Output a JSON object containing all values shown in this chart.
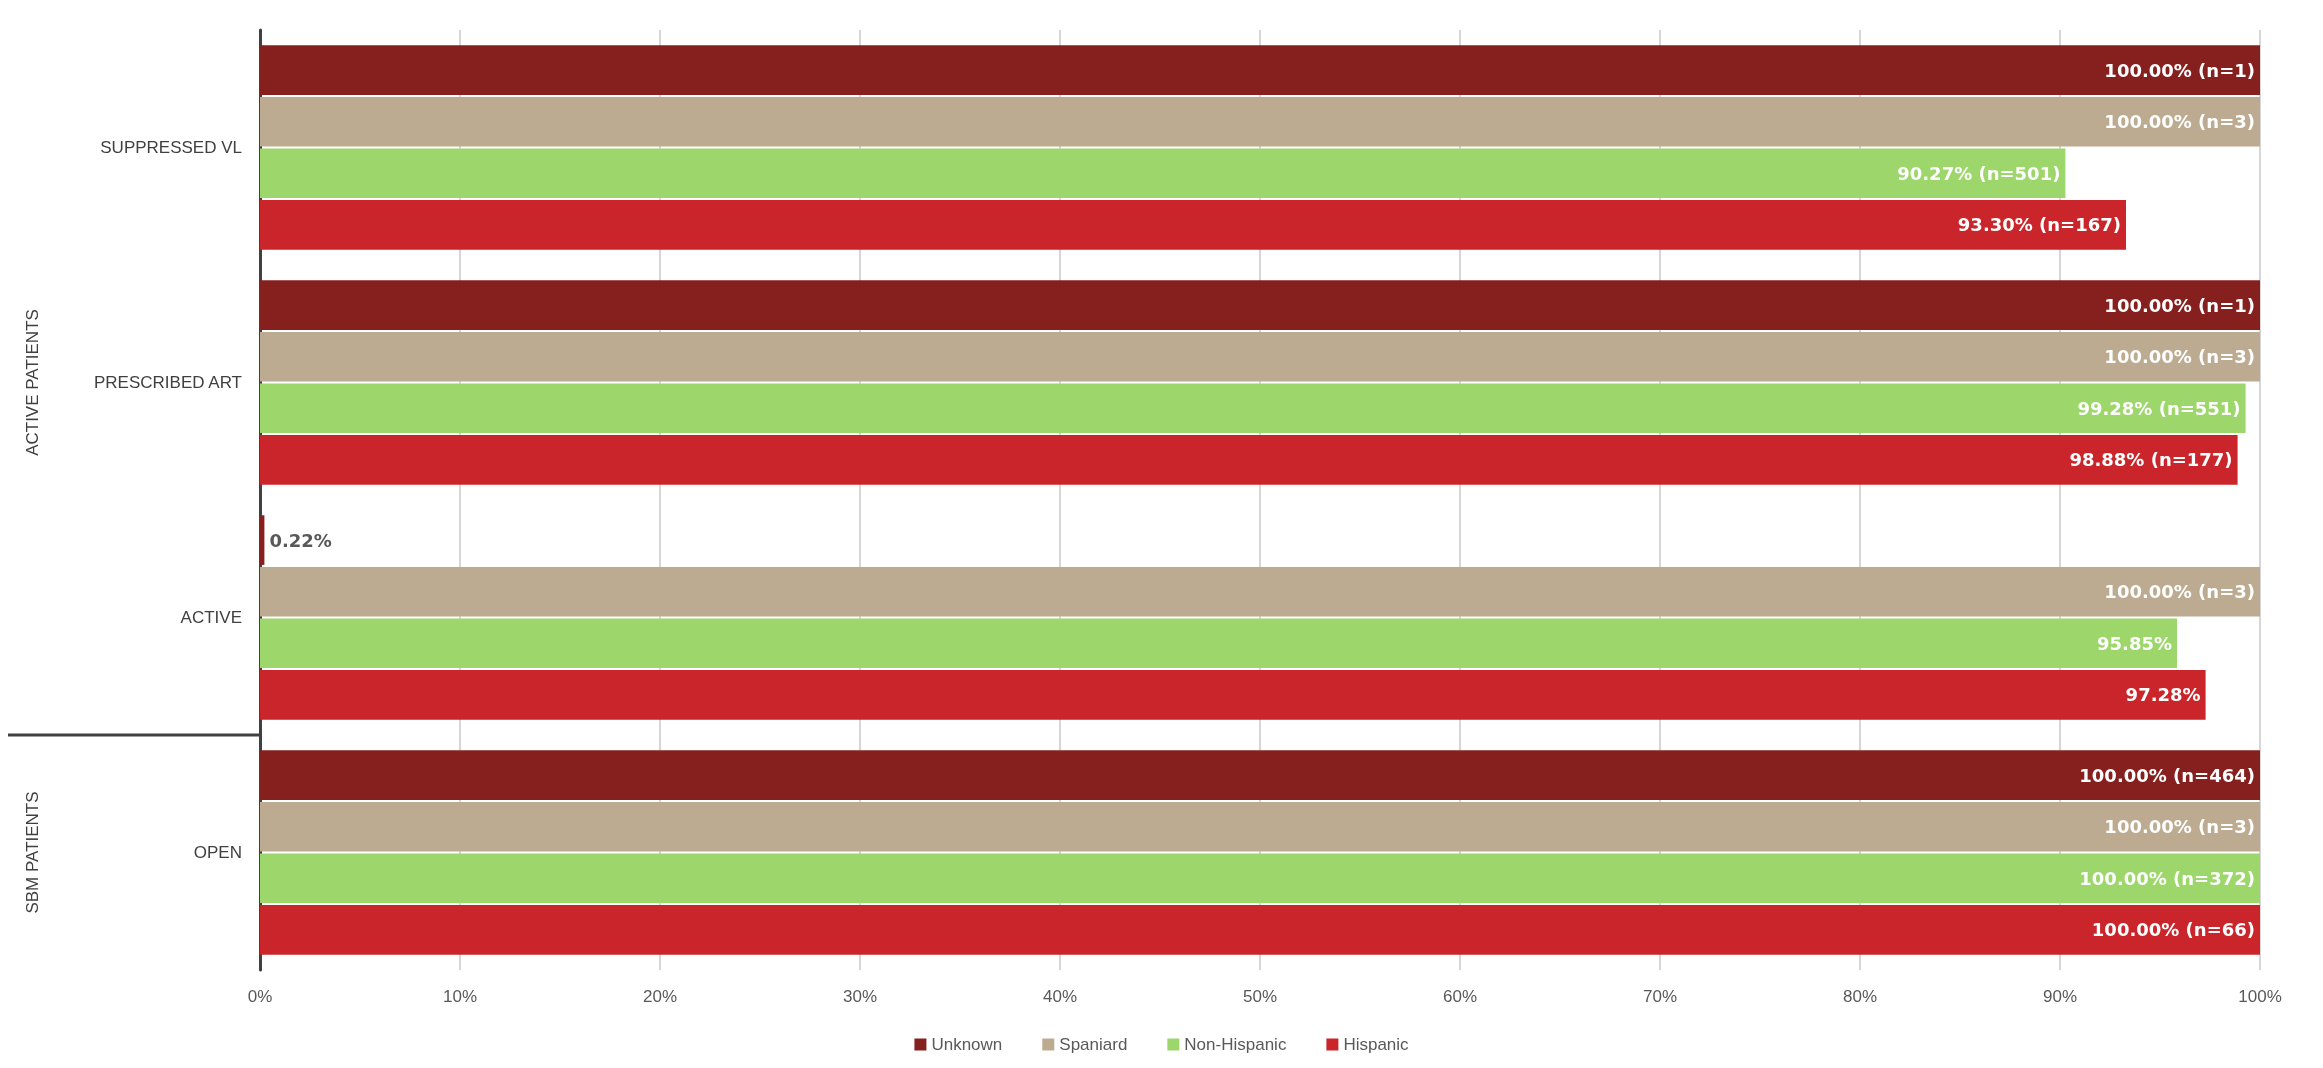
{
  "chart_data": {
    "type": "bar",
    "orientation": "horizontal",
    "categories": [
      "SUPPRESSED VL",
      "PRESCRIBED ART",
      "ACTIVE",
      "OPEN"
    ],
    "series": [
      {
        "name": "Unknown",
        "color": "#85201f",
        "values": [
          100,
          100,
          0.22,
          100
        ],
        "value_labels": [
          "100.00% (n=1)",
          "100.00% (n=1)",
          "0.22%",
          "100.00% (n=464)"
        ]
      },
      {
        "name": "Spaniard",
        "color": "#bcab90",
        "values": [
          100,
          100,
          100,
          100
        ],
        "value_labels": [
          "100.00% (n=3)",
          "100.00% (n=3)",
          "100.00% (n=3)",
          "100.00% (n=3)"
        ]
      },
      {
        "name": "Non-Hispanic",
        "color": "#9dd66a",
        "values": [
          90.27,
          99.28,
          95.85,
          100
        ],
        "value_labels": [
          "90.27% (n=501)",
          "99.28% (n=551)",
          "95.85%",
          "100.00% (n=372)"
        ]
      },
      {
        "name": "Hispanic",
        "color": "#c9252a",
        "values": [
          93.3,
          98.88,
          97.28,
          100
        ],
        "value_labels": [
          "93.30% (n=167)",
          "98.88% (n=177)",
          "97.28%",
          "100.00% (n=66)"
        ]
      }
    ],
    "xlim": [
      0,
      100
    ],
    "xticks": [
      {
        "value": 0,
        "label": "0%"
      },
      {
        "value": 10,
        "label": "10%"
      },
      {
        "value": 20,
        "label": "20%"
      },
      {
        "value": 30,
        "label": "30%"
      },
      {
        "value": 40,
        "label": "40%"
      },
      {
        "value": 50,
        "label": "50%"
      },
      {
        "value": 60,
        "label": "60%"
      },
      {
        "value": 70,
        "label": "70%"
      },
      {
        "value": 80,
        "label": "80%"
      },
      {
        "value": 90,
        "label": "90%"
      },
      {
        "value": 100,
        "label": "100%"
      }
    ],
    "annotations": [
      "ACTIVE PATIENTS",
      "SBM PATIENTS"
    ],
    "grid": "x",
    "legend": "bottom"
  }
}
